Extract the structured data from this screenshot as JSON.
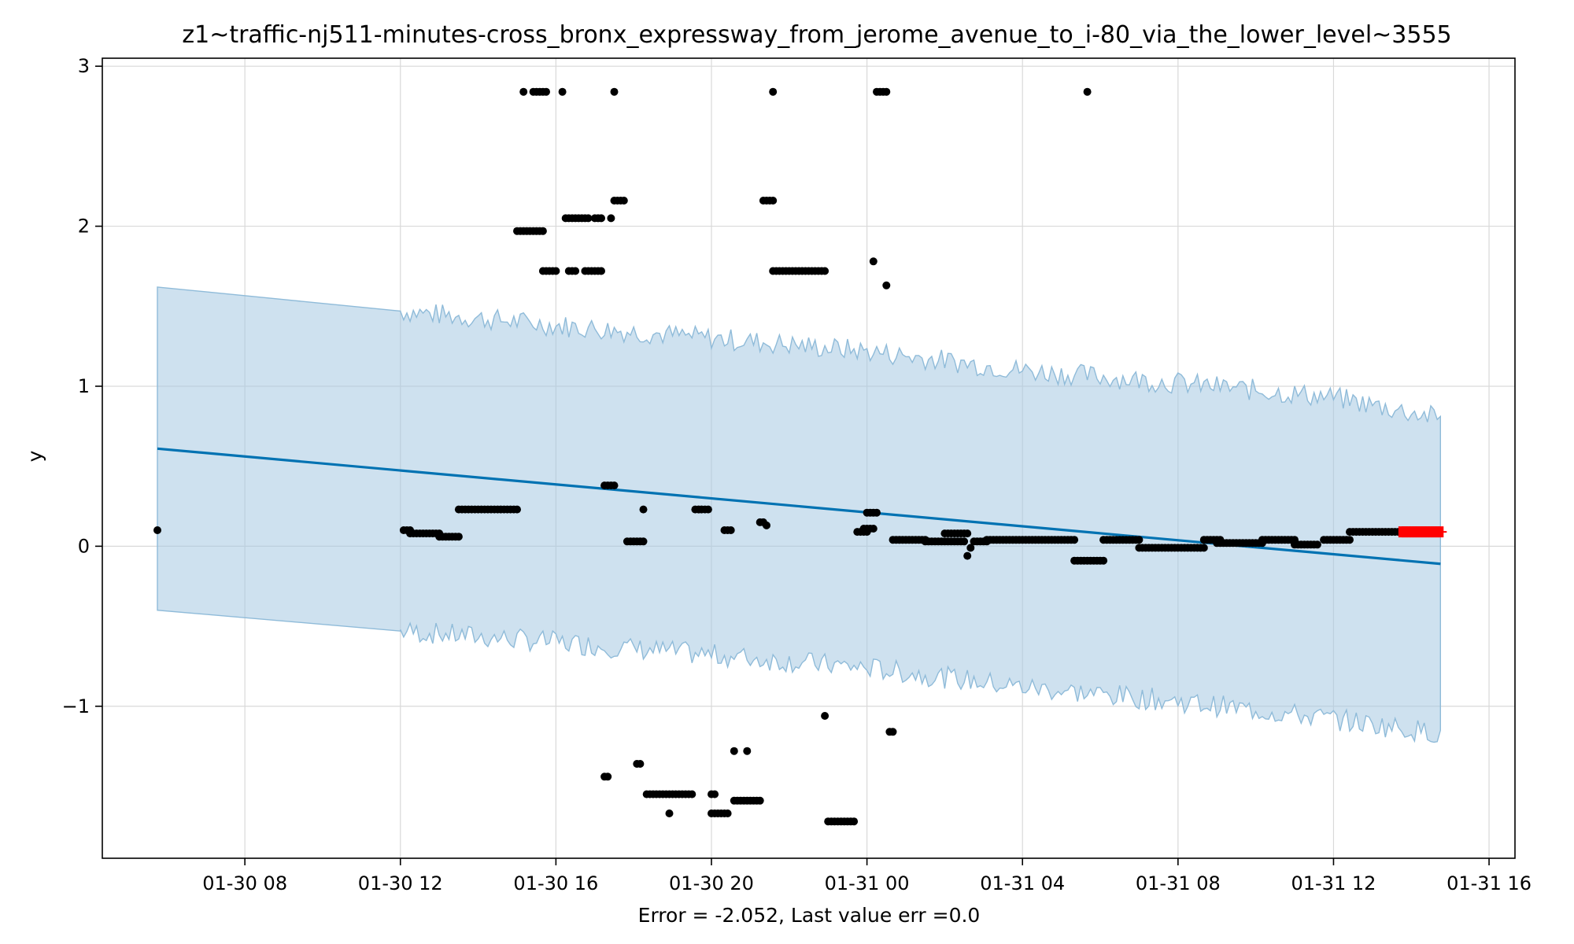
{
  "chart_data": {
    "type": "scatter",
    "title": "z1~traffic-nj511-minutes-cross_bronx_expressway_from_jerome_avenue_to_i-80_via_the_lower_level~3555",
    "xlabel": "Error = -2.052, Last value err =0.0",
    "ylabel": "y",
    "x_tick_labels": [
      "01-30 08",
      "01-30 12",
      "01-30 16",
      "01-30 20",
      "01-31 00",
      "01-31 04",
      "01-31 08",
      "01-31 12",
      "01-31 16"
    ],
    "y_tick_labels": [
      "−1",
      "0",
      "1",
      "2",
      "3"
    ],
    "x_range": [
      "2024-01-30 04:20",
      "2024-01-31 16:40"
    ],
    "ylim": [
      -1.95,
      3.05
    ],
    "grid": true,
    "colors": {
      "observed": "#000000",
      "forecast": "#0072B2",
      "band": "#a6c9e2",
      "band_edge": "#8fbbd9",
      "recent": "#ff0000",
      "grid": "#d9d9d9"
    },
    "forecast_line": {
      "x": [
        "2024-01-30 05:45",
        "2024-01-31 14:45"
      ],
      "y": [
        0.61,
        -0.11
      ]
    },
    "uncertainty_band": {
      "x": [
        "2024-01-30 05:45",
        "2024-01-30 12:00",
        "2024-01-30 16:00",
        "2024-01-30 20:00",
        "2024-01-31 00:00",
        "2024-01-31 04:00",
        "2024-01-31 08:00",
        "2024-01-31 12:00",
        "2024-01-31 14:45"
      ],
      "upper": [
        1.62,
        1.47,
        1.38,
        1.3,
        1.22,
        1.1,
        1.02,
        0.93,
        0.8
      ],
      "lower": [
        -0.4,
        -0.53,
        -0.6,
        -0.68,
        -0.76,
        -0.88,
        -0.97,
        -1.08,
        -1.17
      ]
    },
    "observed": [
      {
        "x": [
          "2024-01-30 05:45"
        ],
        "y": 0.1
      },
      {
        "x": [
          "2024-01-30 12:05",
          "2024-01-30 12:15"
        ],
        "y": 0.1
      },
      {
        "x": [
          "2024-01-30 12:15",
          "2024-01-30 13:00"
        ],
        "y": 0.08
      },
      {
        "x": [
          "2024-01-30 13:00",
          "2024-01-30 13:30"
        ],
        "y": 0.06
      },
      {
        "x": [
          "2024-01-30 13:30",
          "2024-01-30 15:00"
        ],
        "y": 0.23
      },
      {
        "x": [
          "2024-01-30 15:00",
          "2024-01-30 15:40"
        ],
        "y": 1.97
      },
      {
        "x": [
          "2024-01-30 15:10"
        ],
        "y": 2.84
      },
      {
        "x": [
          "2024-01-30 15:25",
          "2024-01-30 15:45"
        ],
        "y": 2.84
      },
      {
        "x": [
          "2024-01-30 16:10"
        ],
        "y": 2.84
      },
      {
        "x": [
          "2024-01-30 15:40",
          "2024-01-30 16:00"
        ],
        "y": 1.72
      },
      {
        "x": [
          "2024-01-30 16:20",
          "2024-01-30 16:30"
        ],
        "y": 1.72
      },
      {
        "x": [
          "2024-01-30 16:45",
          "2024-01-30 17:10"
        ],
        "y": 1.72
      },
      {
        "x": [
          "2024-01-30 16:15",
          "2024-01-30 16:50"
        ],
        "y": 2.05
      },
      {
        "x": [
          "2024-01-30 17:00",
          "2024-01-30 17:10"
        ],
        "y": 2.05
      },
      {
        "x": [
          "2024-01-30 17:25"
        ],
        "y": 2.05
      },
      {
        "x": [
          "2024-01-30 17:30"
        ],
        "y": 2.84
      },
      {
        "x": [
          "2024-01-30 17:30",
          "2024-01-30 17:45"
        ],
        "y": 2.16
      },
      {
        "x": [
          "2024-01-30 17:15",
          "2024-01-30 17:30"
        ],
        "y": 0.38
      },
      {
        "x": [
          "2024-01-30 17:15",
          "2024-01-30 17:20"
        ],
        "y": -1.44
      },
      {
        "x": [
          "2024-01-30 17:50",
          "2024-01-30 18:15"
        ],
        "y": 0.03
      },
      {
        "x": [
          "2024-01-30 18:05",
          "2024-01-30 18:10"
        ],
        "y": -1.36
      },
      {
        "x": [
          "2024-01-30 18:15"
        ],
        "y": 0.23
      },
      {
        "x": [
          "2024-01-30 18:20",
          "2024-01-30 19:30"
        ],
        "y": -1.55
      },
      {
        "x": [
          "2024-01-30 18:55"
        ],
        "y": -1.67
      },
      {
        "x": [
          "2024-01-30 19:35",
          "2024-01-30 19:55"
        ],
        "y": 0.23
      },
      {
        "x": [
          "2024-01-30 20:00",
          "2024-01-30 20:05"
        ],
        "y": -1.55
      },
      {
        "x": [
          "2024-01-30 20:00",
          "2024-01-30 20:25"
        ],
        "y": -1.67
      },
      {
        "x": [
          "2024-01-30 20:20",
          "2024-01-30 20:30"
        ],
        "y": 0.1
      },
      {
        "x": [
          "2024-01-30 20:35"
        ],
        "y": -1.28
      },
      {
        "x": [
          "2024-01-30 20:55"
        ],
        "y": -1.28
      },
      {
        "x": [
          "2024-01-30 20:35",
          "2024-01-30 21:15"
        ],
        "y": -1.59
      },
      {
        "x": [
          "2024-01-30 21:15",
          "2024-01-30 21:20"
        ],
        "y": 0.15
      },
      {
        "x": [
          "2024-01-30 21:25"
        ],
        "y": 0.13
      },
      {
        "x": [
          "2024-01-30 21:20",
          "2024-01-30 21:35"
        ],
        "y": 2.16
      },
      {
        "x": [
          "2024-01-30 21:35"
        ],
        "y": 2.84
      },
      {
        "x": [
          "2024-01-30 21:35",
          "2024-01-30 22:55"
        ],
        "y": 1.72
      },
      {
        "x": [
          "2024-01-30 22:55"
        ],
        "y": -1.06
      },
      {
        "x": [
          "2024-01-30 23:00",
          "2024-01-30 23:40"
        ],
        "y": -1.72
      },
      {
        "x": [
          "2024-01-30 23:45",
          "2024-01-31 00:00"
        ],
        "y": 0.09
      },
      {
        "x": [
          "2024-01-30 23:55",
          "2024-01-31 00:10"
        ],
        "y": 0.11
      },
      {
        "x": [
          "2024-01-31 00:00",
          "2024-01-31 00:15"
        ],
        "y": 0.21
      },
      {
        "x": [
          "2024-01-31 00:10"
        ],
        "y": 1.78
      },
      {
        "x": [
          "2024-01-31 00:15",
          "2024-01-31 00:30"
        ],
        "y": 2.84
      },
      {
        "x": [
          "2024-01-31 00:30"
        ],
        "y": 1.63
      },
      {
        "x": [
          "2024-01-31 00:35",
          "2024-01-31 00:40"
        ],
        "y": -1.16
      },
      {
        "x": [
          "2024-01-31 00:40",
          "2024-01-31 01:30"
        ],
        "y": 0.04
      },
      {
        "x": [
          "2024-01-31 01:30",
          "2024-01-31 02:30"
        ],
        "y": 0.03
      },
      {
        "x": [
          "2024-01-31 02:00",
          "2024-01-31 02:35"
        ],
        "y": 0.08
      },
      {
        "x": [
          "2024-01-31 02:35"
        ],
        "y": -0.06
      },
      {
        "x": [
          "2024-01-31 02:40"
        ],
        "y": -0.01
      },
      {
        "x": [
          "2024-01-31 02:45",
          "2024-01-31 03:05"
        ],
        "y": 0.03
      },
      {
        "x": [
          "2024-01-31 03:05",
          "2024-01-31 05:20"
        ],
        "y": 0.04
      },
      {
        "x": [
          "2024-01-31 05:20",
          "2024-01-31 06:05"
        ],
        "y": -0.09
      },
      {
        "x": [
          "2024-01-31 05:40"
        ],
        "y": 2.84
      },
      {
        "x": [
          "2024-01-31 06:05",
          "2024-01-31 07:00"
        ],
        "y": 0.04
      },
      {
        "x": [
          "2024-01-31 07:00",
          "2024-01-31 08:40"
        ],
        "y": -0.01
      },
      {
        "x": [
          "2024-01-31 08:40",
          "2024-01-31 09:05"
        ],
        "y": 0.04
      },
      {
        "x": [
          "2024-01-31 09:00",
          "2024-01-31 10:10"
        ],
        "y": 0.02
      },
      {
        "x": [
          "2024-01-31 10:10",
          "2024-01-31 11:00"
        ],
        "y": 0.04
      },
      {
        "x": [
          "2024-01-31 11:00",
          "2024-01-31 11:35"
        ],
        "y": 0.01
      },
      {
        "x": [
          "2024-01-31 11:45",
          "2024-01-31 12:25"
        ],
        "y": 0.04
      },
      {
        "x": [
          "2024-01-31 12:25",
          "2024-01-31 13:45"
        ],
        "y": 0.09
      }
    ],
    "recent": {
      "x": [
        "2024-01-31 13:45",
        "2024-01-31 14:45"
      ],
      "y": 0.09
    }
  }
}
